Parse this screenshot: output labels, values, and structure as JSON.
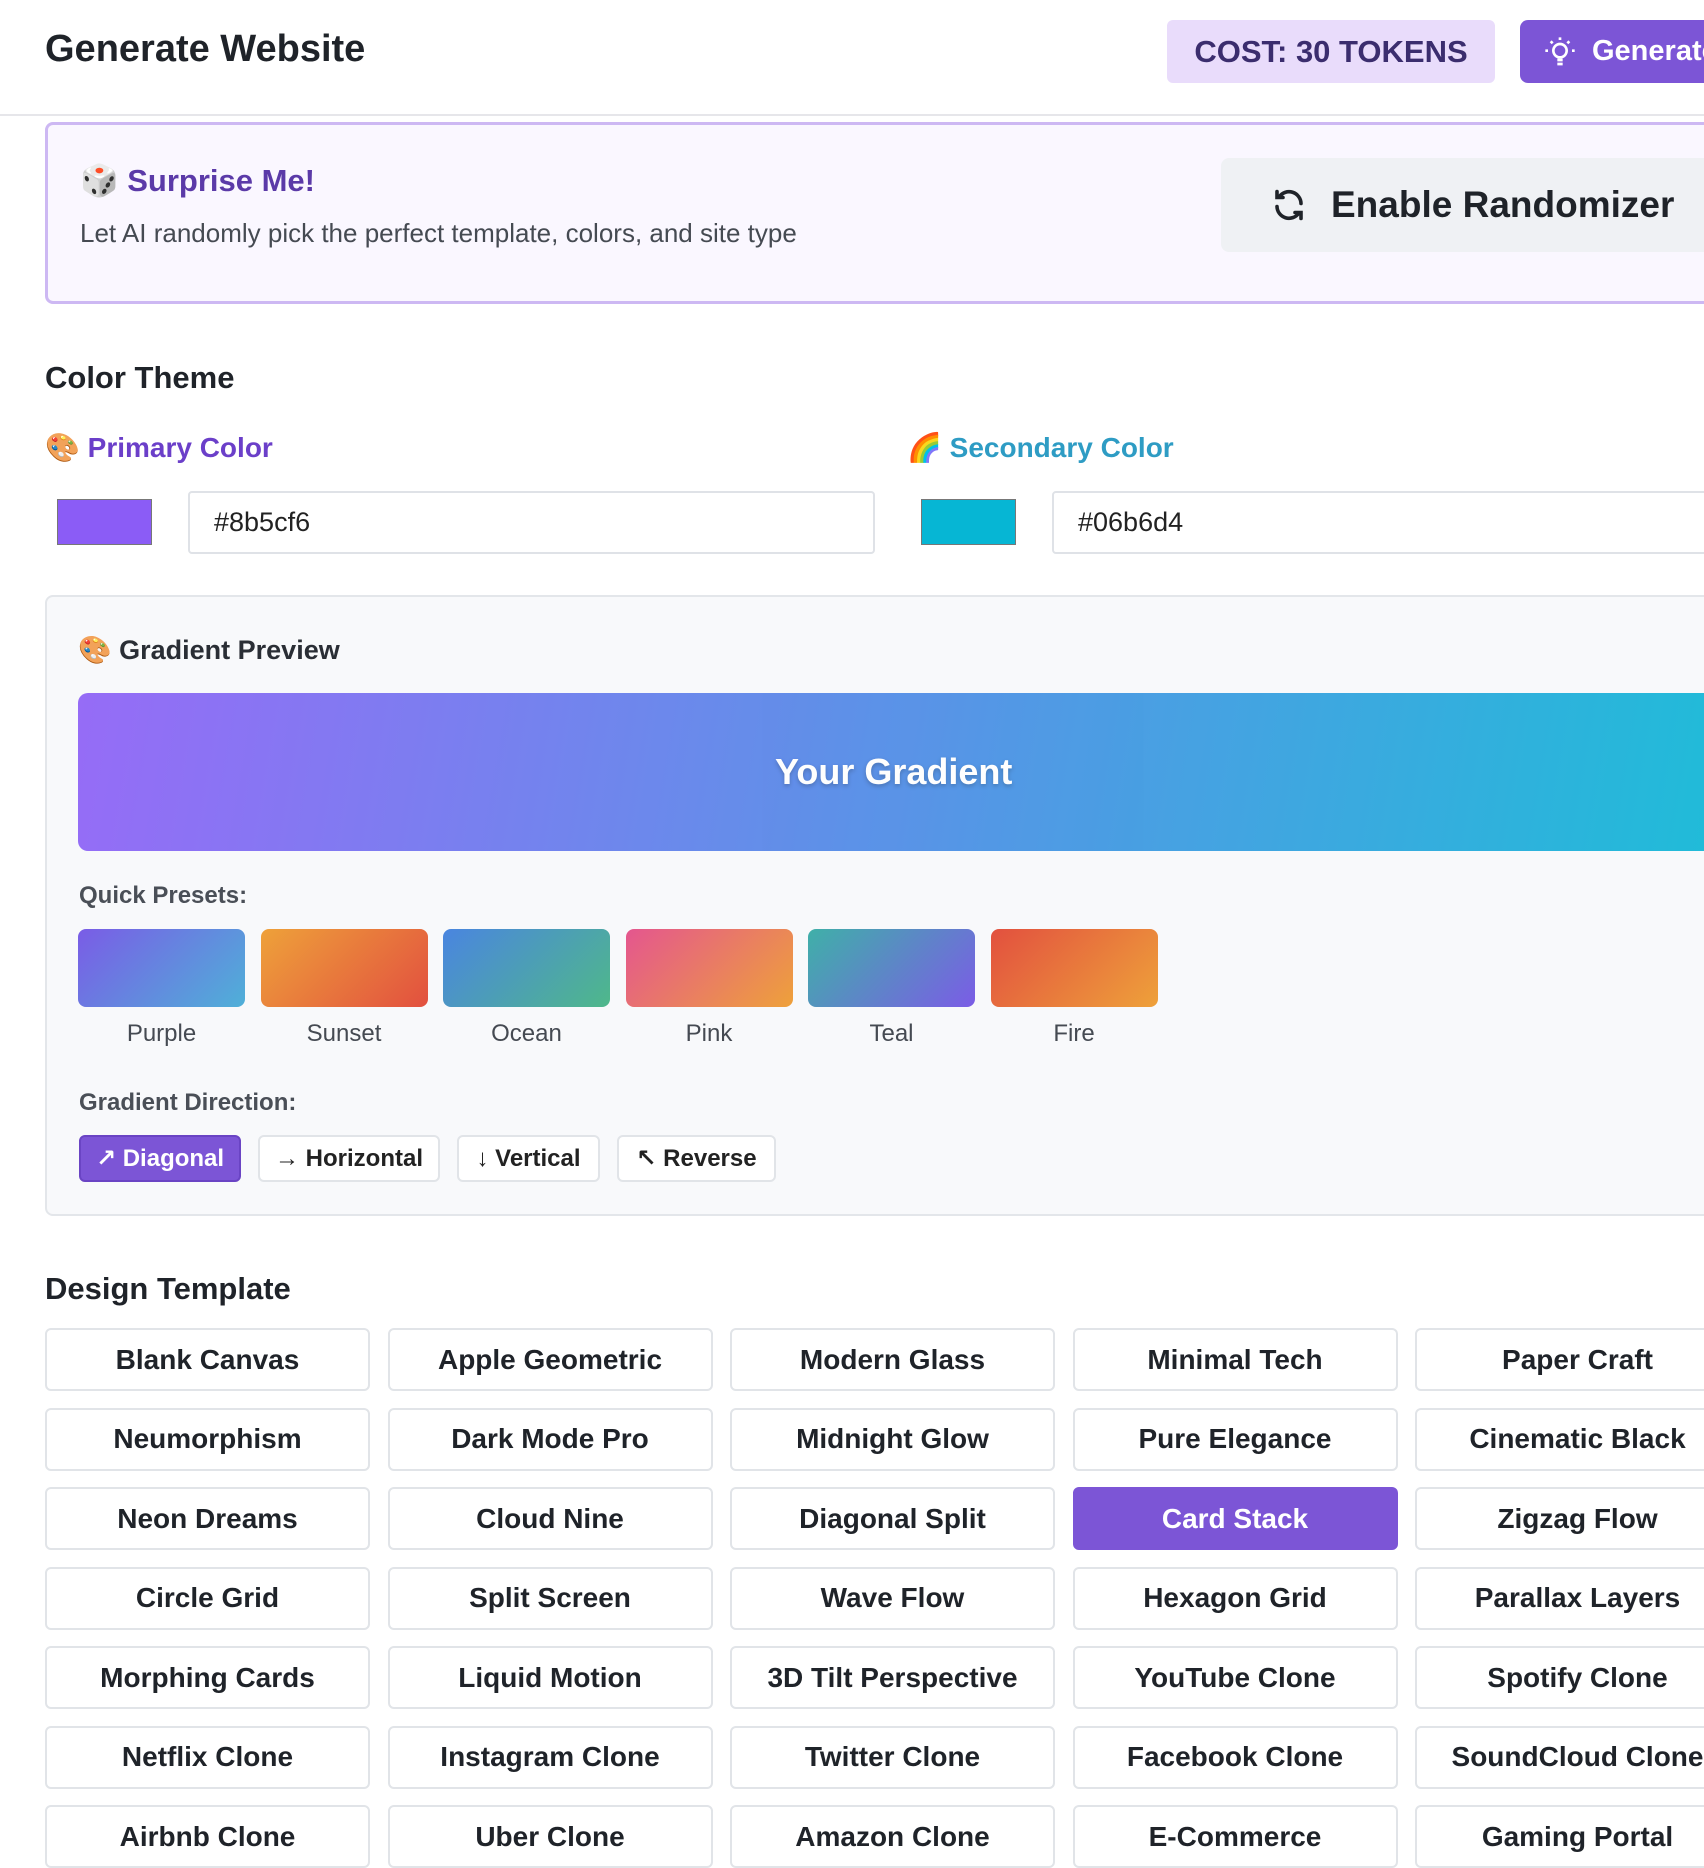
{
  "header": {
    "title": "Generate Website",
    "cost": "COST: 30 TOKENS",
    "generate_button": "Generate"
  },
  "surprise": {
    "title": "🎲 Surprise Me!",
    "description": "Let AI randomly pick the perfect template, colors, and site type",
    "button": "Enable Randomizer"
  },
  "color_theme": {
    "heading": "Color Theme",
    "primary": {
      "label": "🎨 Primary Color",
      "value": "#8b5cf6"
    },
    "secondary": {
      "label": "🌈 Secondary Color",
      "value": "#06b6d4"
    }
  },
  "gradient": {
    "title": "🎨 Gradient Preview",
    "preview_text": "Your Gradient",
    "presets_label": "Quick Presets:",
    "presets": [
      "Purple",
      "Sunset",
      "Ocean",
      "Pink",
      "Teal",
      "Fire"
    ],
    "direction_label": "Gradient Direction:",
    "directions": [
      "↗ Diagonal",
      "→ Horizontal",
      "↓ Vertical",
      "↖ Reverse"
    ],
    "selected_direction": 0
  },
  "templates": {
    "heading": "Design Template",
    "items": [
      "Blank Canvas",
      "Apple Geometric",
      "Modern Glass",
      "Minimal Tech",
      "Paper Craft",
      "Neumorphism",
      "Dark Mode Pro",
      "Midnight Glow",
      "Pure Elegance",
      "Cinematic Black",
      "Neon Dreams",
      "Cloud Nine",
      "Diagonal Split",
      "Card Stack",
      "Zigzag Flow",
      "Circle Grid",
      "Split Screen",
      "Wave Flow",
      "Hexagon Grid",
      "Parallax Layers",
      "Morphing Cards",
      "Liquid Motion",
      "3D Tilt Perspective",
      "YouTube Clone",
      "Spotify Clone",
      "Netflix Clone",
      "Instagram Clone",
      "Twitter Clone",
      "Facebook Clone",
      "SoundCloud Clone",
      "Airbnb Clone",
      "Uber Clone",
      "Amazon Clone",
      "E-Commerce",
      "Gaming Portal"
    ],
    "selected": 13
  }
}
